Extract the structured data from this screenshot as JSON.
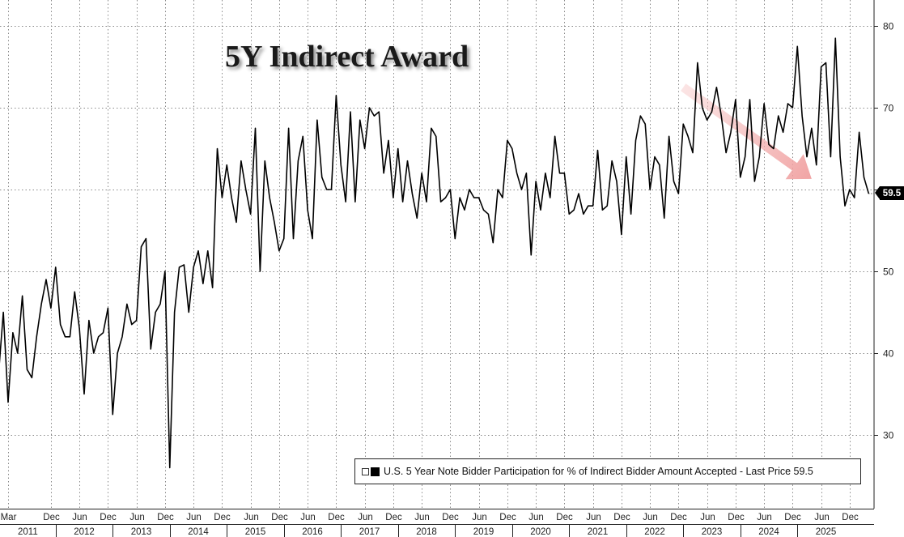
{
  "title": "5Y Indirect Award",
  "legend": {
    "label": "U.S. 5 Year Note Bidder Participation for % of Indirect Bidder Amount Accepted - Last Price 59.5"
  },
  "last_value_label": "59.5",
  "colors": {
    "line": "#000000",
    "trend_arrow": "#f2a7a7",
    "grid": "#888888",
    "badge": "#000000"
  },
  "chart_data": {
    "type": "line",
    "title": "5Y Indirect Award",
    "series": [
      {
        "name": "U.S. 5 Year Note Bidder Participation for % of Indirect Bidder Amount Accepted",
        "x_start": "2011-01",
        "x_end": "2025-10",
        "frequency": "monthly",
        "values": [
          37.5,
          45,
          34,
          42.5,
          40,
          47,
          38,
          37,
          42,
          46,
          49,
          45.5,
          50.5,
          43.5,
          42,
          42,
          47.5,
          43,
          35,
          44,
          40,
          42,
          42.5,
          45.5,
          32.5,
          40,
          42,
          46,
          43.5,
          44,
          53,
          54,
          40.5,
          45,
          46,
          50,
          26,
          45,
          50.5,
          50.8,
          45,
          50.5,
          52.5,
          48.5,
          52.5,
          48,
          65,
          59,
          63,
          59,
          56,
          63.5,
          60,
          57,
          67.5,
          50,
          63.5,
          59,
          56,
          52.5,
          54,
          67.5,
          54,
          63.5,
          66.5,
          57.5,
          54,
          68.5,
          61.5,
          60,
          60,
          71.5,
          63,
          58.5,
          69.5,
          58.5,
          68.5,
          65,
          70,
          69,
          69.5,
          62,
          66,
          59,
          65,
          58.5,
          63.5,
          59.5,
          56.5,
          62,
          58.5,
          67.5,
          66.5,
          58.5,
          59,
          60,
          54,
          59,
          57.5,
          60,
          59,
          59,
          57.5,
          57,
          53.5,
          60,
          59,
          66,
          65,
          62,
          60,
          62,
          52,
          61,
          57.5,
          62,
          59,
          66.5,
          62,
          62,
          57,
          57.5,
          59.5,
          57,
          58,
          58,
          64.8,
          57.5,
          58,
          63.5,
          61,
          54.5,
          64,
          57,
          66,
          69,
          68,
          60,
          64,
          63,
          56.5,
          66.5,
          61,
          59.5,
          68,
          66.5,
          64.5,
          75.5,
          70,
          68.5,
          69.5,
          72.5,
          69,
          64.5,
          67,
          71,
          61.5,
          64,
          71,
          61,
          64,
          70.5,
          65.5,
          65,
          69,
          67,
          70.5,
          70,
          77.5,
          69,
          64,
          67.5,
          63,
          75,
          75.5,
          64,
          78.5,
          64,
          58,
          60,
          59,
          67,
          61.5,
          59.5
        ]
      }
    ],
    "x_tick_labels": [
      "Mar",
      "Dec",
      "Jun",
      "Dec",
      "Jun",
      "Dec",
      "Jun",
      "Dec",
      "Jun",
      "Dec",
      "Jun",
      "Dec",
      "Jun",
      "Dec",
      "Jun",
      "Dec",
      "Jun",
      "Dec",
      "Jun",
      "Dec",
      "Jun",
      "Dec",
      "Jun",
      "Dec",
      "Jun",
      "Dec",
      "Jun",
      "Dec",
      "Jun",
      "Dec"
    ],
    "x_tick_months": [
      "2011-03",
      "2011-12",
      "2012-06",
      "2012-12",
      "2013-06",
      "2013-12",
      "2014-06",
      "2014-12",
      "2015-06",
      "2015-12",
      "2016-06",
      "2016-12",
      "2017-06",
      "2017-12",
      "2018-06",
      "2018-12",
      "2019-06",
      "2019-12",
      "2020-06",
      "2020-12",
      "2021-06",
      "2021-12",
      "2022-06",
      "2022-12",
      "2023-06",
      "2023-12",
      "2024-06",
      "2024-12",
      "2025-06",
      "2025-12"
    ],
    "year_labels": [
      "2011",
      "2012",
      "2013",
      "2014",
      "2015",
      "2016",
      "2017",
      "2018",
      "2019",
      "2020",
      "2021",
      "2022",
      "2023",
      "2024",
      "2025"
    ],
    "y_ticks": [
      30,
      40,
      50,
      60,
      70,
      80
    ],
    "y_tick_labels": [
      "30",
      "40",
      "50",
      "60",
      "70",
      "80"
    ],
    "ylim": [
      22,
      83
    ],
    "y_axis_side": "right",
    "grid": true,
    "legend_position": "bottom-right",
    "last_price": 59.5,
    "annotation": "downward trend arrow from early 2023 to late 2025"
  }
}
